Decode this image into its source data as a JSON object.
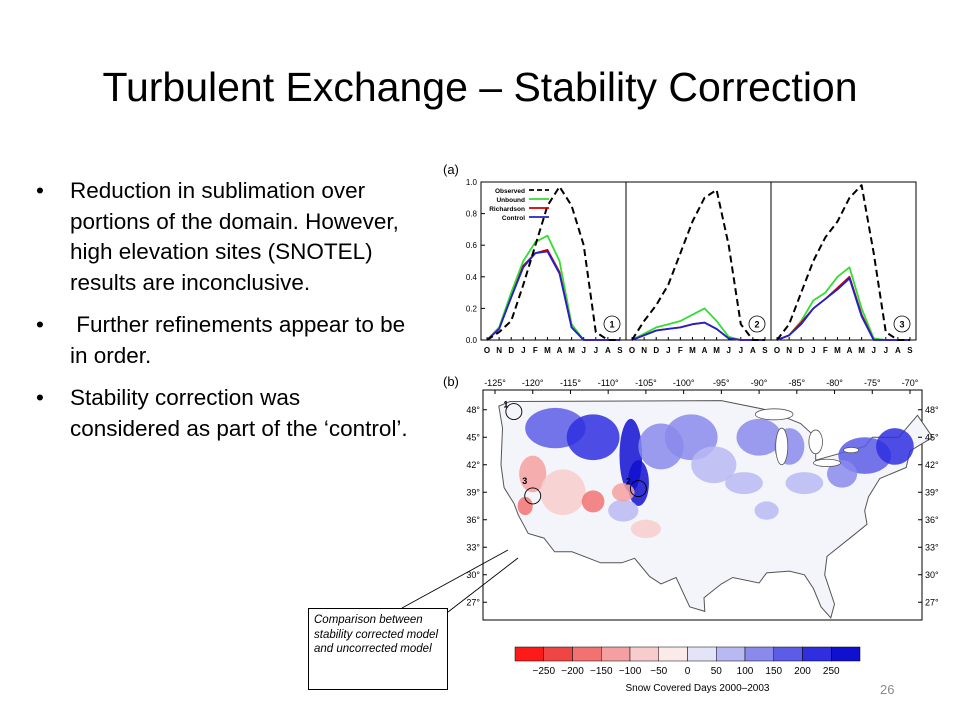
{
  "slide": {
    "title": "Turbulent Exchange – Stability Correction",
    "bullets": [
      "Reduction in sublimation over portions of the domain. However, high elevation sites (SNOTEL) results are inconclusive.",
      " Further refinements appear to be in order.",
      "Stability correction was considered as part of the ‘control’."
    ],
    "bullet_symbol": "•",
    "page_number": "26",
    "callout_text": "Comparison between stability corrected model and uncorrected model"
  },
  "chart_data": [
    {
      "type": "line",
      "panel_label": "(a)",
      "ylim": [
        0,
        1.0
      ],
      "yticks": [
        "0.0",
        "0.2",
        "0.4",
        "0.6",
        "0.8",
        "1.0"
      ],
      "x": [
        "O",
        "N",
        "D",
        "J",
        "F",
        "M",
        "A",
        "M",
        "J",
        "J",
        "A",
        "S"
      ],
      "legend_entries": [
        "Observed",
        "Unbound",
        "Richardson",
        "Control"
      ],
      "legend_placement": "top-left",
      "colors": {
        "Observed": "#000000",
        "Unbound": "#33dd33",
        "Richardson": "#cc0000",
        "Control": "#2222cc"
      },
      "subplots": [
        {
          "site_label": "1",
          "series": [
            {
              "name": "Observed",
              "values": [
                0.0,
                0.05,
                0.12,
                0.35,
                0.6,
                0.85,
                0.97,
                0.85,
                0.6,
                0.05,
                0.0,
                0.0
              ]
            },
            {
              "name": "Unbound",
              "values": [
                0.0,
                0.08,
                0.3,
                0.5,
                0.62,
                0.66,
                0.5,
                0.1,
                0.0,
                0.0,
                0.0,
                0.0
              ]
            },
            {
              "name": "Richardson",
              "values": [
                0.0,
                0.07,
                0.27,
                0.47,
                0.55,
                0.57,
                0.43,
                0.08,
                0.0,
                0.0,
                0.0,
                0.0
              ]
            },
            {
              "name": "Control",
              "values": [
                0.0,
                0.07,
                0.27,
                0.46,
                0.55,
                0.56,
                0.42,
                0.08,
                0.0,
                0.0,
                0.0,
                0.0
              ]
            }
          ]
        },
        {
          "site_label": "2",
          "series": [
            {
              "name": "Observed",
              "values": [
                0.0,
                0.12,
                0.22,
                0.35,
                0.55,
                0.75,
                0.9,
                0.95,
                0.6,
                0.1,
                0.0,
                0.0
              ]
            },
            {
              "name": "Unbound",
              "values": [
                0.0,
                0.04,
                0.08,
                0.1,
                0.12,
                0.16,
                0.2,
                0.12,
                0.02,
                0.0,
                0.0,
                0.0
              ]
            },
            {
              "name": "Richardson",
              "values": [
                0.0,
                0.03,
                0.06,
                0.07,
                0.08,
                0.1,
                0.11,
                0.07,
                0.01,
                0.0,
                0.0,
                0.0
              ]
            },
            {
              "name": "Control",
              "values": [
                0.0,
                0.03,
                0.06,
                0.07,
                0.08,
                0.1,
                0.11,
                0.07,
                0.01,
                0.0,
                0.0,
                0.0
              ]
            }
          ]
        },
        {
          "site_label": "3",
          "series": [
            {
              "name": "Observed",
              "values": [
                0.0,
                0.1,
                0.3,
                0.5,
                0.65,
                0.75,
                0.9,
                0.98,
                0.55,
                0.05,
                0.0,
                0.0
              ]
            },
            {
              "name": "Unbound",
              "values": [
                0.0,
                0.03,
                0.12,
                0.25,
                0.3,
                0.4,
                0.46,
                0.2,
                0.01,
                0.0,
                0.0,
                0.0
              ]
            },
            {
              "name": "Richardson",
              "values": [
                0.0,
                0.03,
                0.11,
                0.2,
                0.26,
                0.33,
                0.4,
                0.16,
                0.0,
                0.0,
                0.0,
                0.0
              ]
            },
            {
              "name": "Control",
              "values": [
                0.0,
                0.03,
                0.1,
                0.2,
                0.26,
                0.32,
                0.39,
                0.15,
                0.0,
                0.0,
                0.0,
                0.0
              ]
            }
          ]
        }
      ]
    },
    {
      "type": "heatmap",
      "panel_label": "(b)",
      "xticks": [
        "-125°",
        "-120°",
        "-115°",
        "-110°",
        "-105°",
        "-100°",
        "-95°",
        "-90°",
        "-85°",
        "-80°",
        "-75°",
        "-70°"
      ],
      "yticks": [
        "48°",
        "45°",
        "42°",
        "39°",
        "36°",
        "33°",
        "30°",
        "27°"
      ],
      "site_labels": [
        "1",
        "2",
        "3"
      ],
      "colorbar": {
        "label": "Snow Covered Days 2000–2003",
        "ticks": [
          "−250",
          "−200",
          "−150",
          "−100",
          "−50",
          "0",
          "50",
          "100",
          "150",
          "200",
          "250"
        ],
        "colors": [
          "#ff1a1a",
          "#f04545",
          "#f27272",
          "#f5a0a0",
          "#f8cccc",
          "#fbeaea",
          "#e4e4f8",
          "#b8b8f2",
          "#8a8aec",
          "#5c5ce6",
          "#2f2fe0",
          "#1010d0"
        ]
      }
    }
  ]
}
